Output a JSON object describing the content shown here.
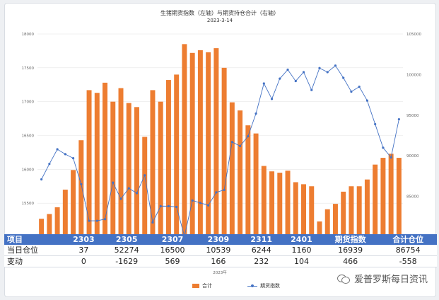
{
  "chart_data": {
    "type": "bar+line",
    "title": "生猪期货指数（左轴）与期货持仓合计（右轴）",
    "subtitle": "2023-3-14",
    "x_axis_label": "2023年",
    "left_axis": {
      "min": 15000,
      "max": 18000,
      "ticks": [
        "18000",
        "17500",
        "17000",
        "16500",
        "16000",
        "15500"
      ]
    },
    "right_axis": {
      "min": 80000,
      "max": 105000,
      "ticks": [
        "105000",
        "100000",
        "95000",
        "90000",
        "85000"
      ]
    },
    "series": [
      {
        "name": "合计",
        "kind": "bar",
        "axis": "left",
        "color": "#ed7d31",
        "values": [
          15270,
          15340,
          15440,
          15700,
          15990,
          16430,
          17170,
          17130,
          17280,
          17000,
          17200,
          16980,
          16920,
          16480,
          17170,
          17000,
          17320,
          17400,
          17850,
          17720,
          17760,
          17730,
          17790,
          17500,
          16990,
          16870,
          16650,
          16530,
          16050,
          15970,
          15950,
          15980,
          15810,
          15780,
          15750,
          15230,
          15410,
          15490,
          15670,
          15750,
          15750,
          15850,
          16070,
          16170,
          16230,
          16170
        ]
      },
      {
        "name": "期货指数",
        "kind": "line",
        "axis": "right",
        "color": "#4472c4",
        "values": [
          87100,
          89000,
          90800,
          90200,
          89700,
          86500,
          82000,
          82000,
          82200,
          86700,
          84700,
          86000,
          85400,
          87600,
          81800,
          83800,
          83800,
          83700,
          80100,
          84500,
          84200,
          83900,
          85500,
          85800,
          91700,
          91200,
          92400,
          95200,
          98900,
          97000,
          99500,
          100600,
          99200,
          100300,
          98100,
          100800,
          100300,
          101100,
          99600,
          97900,
          98500,
          96800,
          93900,
          91000,
          89800,
          94500
        ]
      }
    ]
  },
  "table": {
    "header": [
      "项目",
      "2303",
      "2305",
      "2307",
      "2309",
      "2311",
      "2401",
      "期货指数",
      "合计仓位"
    ],
    "rows": [
      {
        "label": "当日仓位",
        "cells": [
          "37",
          "52274",
          "16500",
          "10539",
          "6244",
          "1160",
          "16939",
          "86754"
        ]
      },
      {
        "label": "变动",
        "cells": [
          "0",
          "-1629",
          "569",
          "166",
          "232",
          "104",
          "466",
          "-558"
        ]
      }
    ]
  },
  "legend": {
    "bar_label": "合计",
    "line_label": "期货指数"
  },
  "watermark": {
    "text": "爱普罗斯每日资讯",
    "icon": "wechat-icon"
  }
}
